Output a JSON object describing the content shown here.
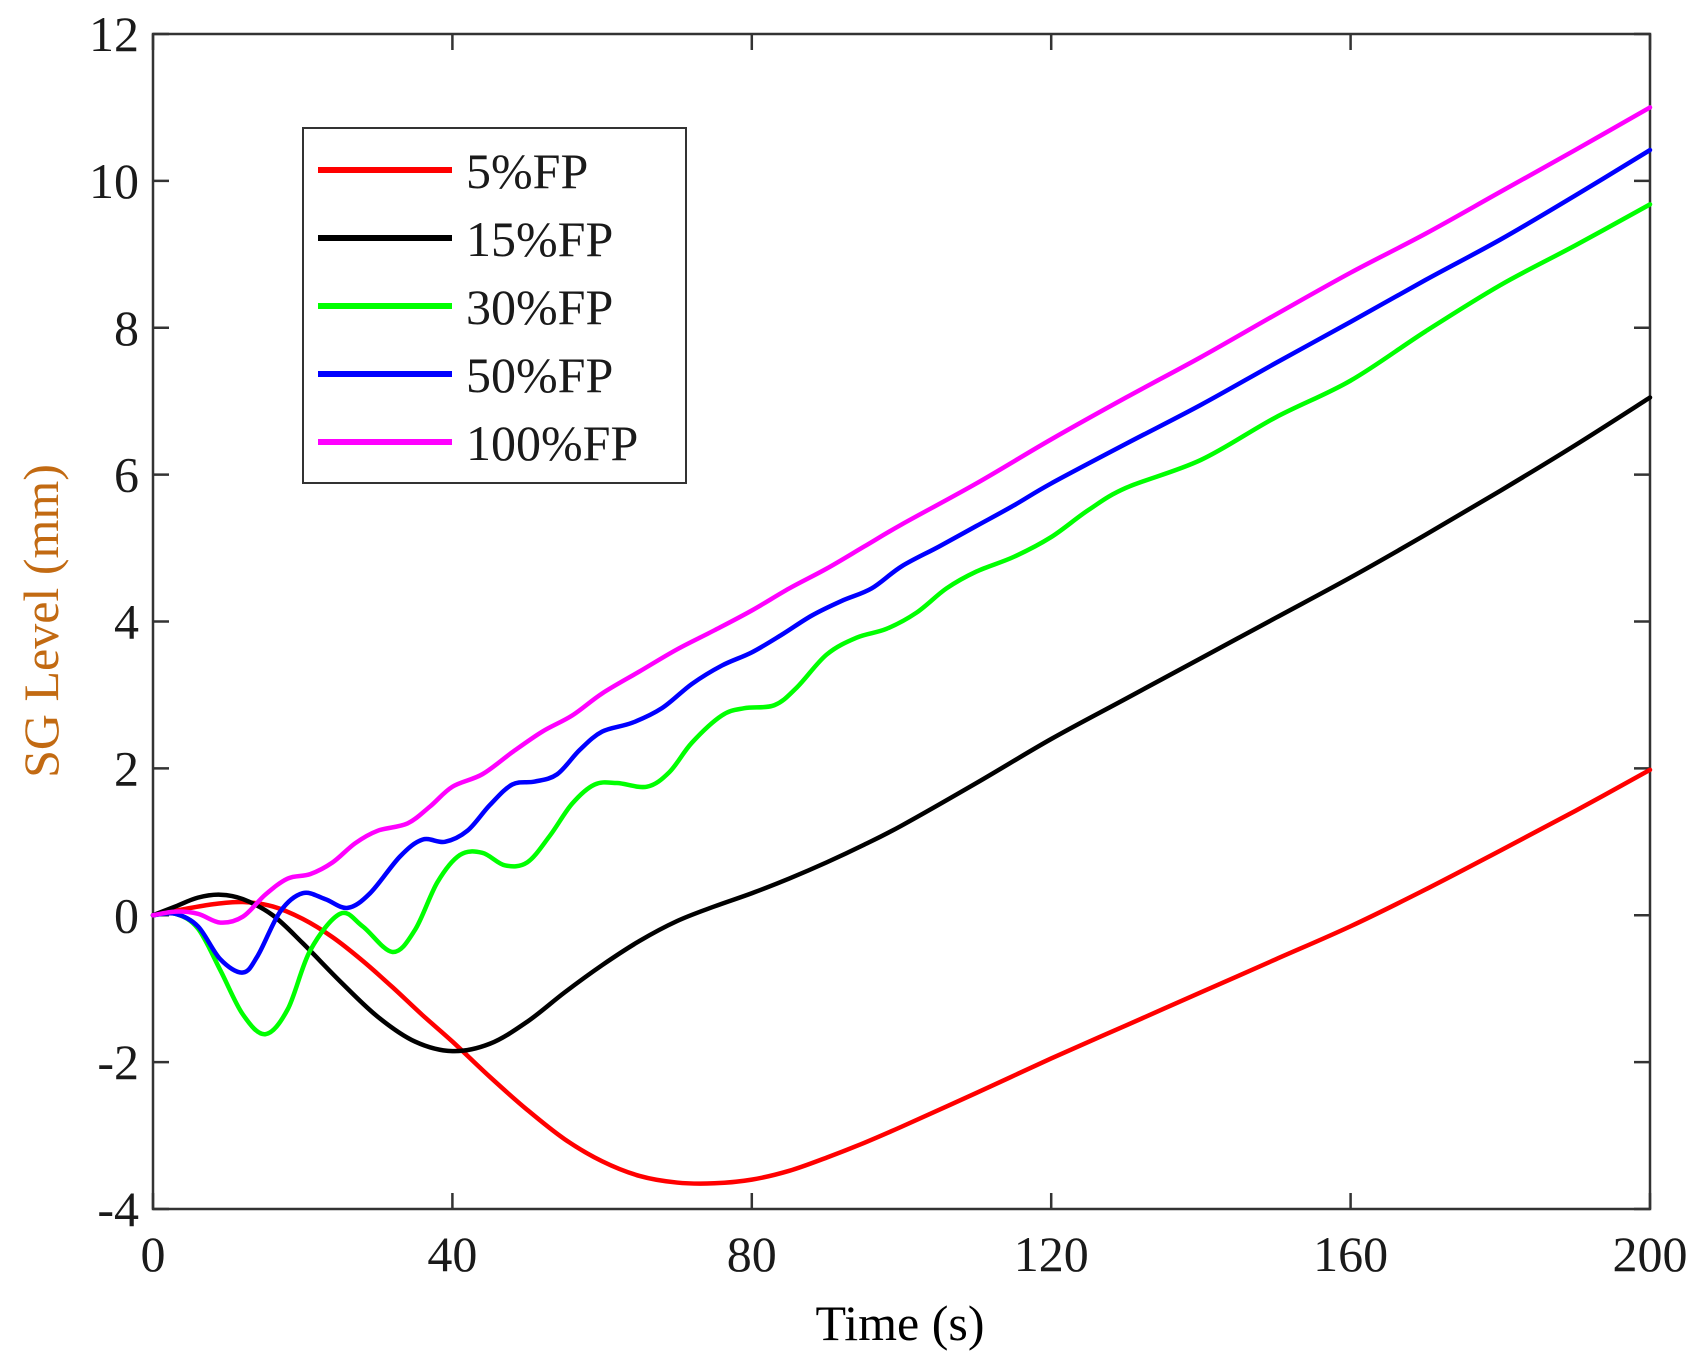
{
  "chart_data": {
    "type": "line",
    "xlabel": "Time (s)",
    "ylabel": "SG Level (mm)",
    "xlim": [
      0,
      200
    ],
    "ylim": [
      -4,
      12
    ],
    "xticks": [
      0,
      40,
      80,
      120,
      160,
      200
    ],
    "yticks": [
      -4,
      -2,
      0,
      2,
      4,
      6,
      8,
      10,
      12
    ],
    "xtick_labels": [
      "0",
      "40",
      "80",
      "120",
      "160",
      "200"
    ],
    "ytick_labels": [
      "-4",
      "-2",
      "0",
      "2",
      "4",
      "6",
      "8",
      "10",
      "12"
    ],
    "grid": false,
    "legend_position": "upper-left",
    "axis_label_colors": {
      "x": "#000000",
      "y": "#C26A12"
    },
    "series": [
      {
        "name": "5%FP",
        "color": "#FF0000",
        "x": [
          0,
          4,
          8,
          12,
          16,
          20,
          24,
          28,
          32,
          36,
          40,
          45,
          50,
          55,
          60,
          65,
          70,
          75,
          80,
          85,
          90,
          95,
          100,
          110,
          120,
          130,
          140,
          150,
          160,
          170,
          180,
          190,
          200
        ],
        "values": [
          0,
          0.08,
          0.15,
          0.18,
          0.12,
          -0.05,
          -0.3,
          -0.62,
          -0.98,
          -1.36,
          -1.72,
          -2.2,
          -2.65,
          -3.05,
          -3.35,
          -3.55,
          -3.64,
          -3.65,
          -3.6,
          -3.48,
          -3.3,
          -3.1,
          -2.88,
          -2.42,
          -1.95,
          -1.5,
          -1.05,
          -0.6,
          -0.15,
          0.35,
          0.88,
          1.42,
          1.98
        ]
      },
      {
        "name": "15%FP",
        "color": "#000000",
        "x": [
          0,
          3,
          6,
          9,
          12,
          16,
          20,
          25,
          30,
          35,
          40,
          45,
          50,
          55,
          60,
          65,
          70,
          75,
          80,
          85,
          90,
          95,
          100,
          110,
          120,
          130,
          140,
          150,
          160,
          170,
          180,
          190,
          200
        ],
        "values": [
          0,
          0.12,
          0.24,
          0.28,
          0.22,
          0.0,
          -0.38,
          -0.9,
          -1.38,
          -1.72,
          -1.85,
          -1.75,
          -1.45,
          -1.05,
          -0.68,
          -0.35,
          -0.08,
          0.12,
          0.3,
          0.5,
          0.72,
          0.96,
          1.22,
          1.8,
          2.4,
          2.95,
          3.5,
          4.05,
          4.6,
          5.18,
          5.78,
          6.4,
          7.05
        ]
      },
      {
        "name": "30%FP",
        "color": "#00FF00",
        "x": [
          0,
          3,
          6,
          9,
          12,
          15,
          18,
          21,
          25,
          28,
          32,
          35,
          38,
          41,
          44,
          47,
          50,
          53,
          56,
          59,
          62,
          66,
          69,
          72,
          76,
          79,
          83,
          86,
          90,
          94,
          98,
          102,
          106,
          110,
          115,
          120,
          125,
          130,
          140,
          150,
          160,
          170,
          180,
          190,
          200
        ],
        "values": [
          0,
          0.02,
          -0.18,
          -0.75,
          -1.35,
          -1.62,
          -1.28,
          -0.48,
          0.02,
          -0.15,
          -0.5,
          -0.2,
          0.45,
          0.82,
          0.85,
          0.68,
          0.72,
          1.08,
          1.52,
          1.78,
          1.8,
          1.75,
          1.95,
          2.35,
          2.72,
          2.82,
          2.86,
          3.1,
          3.55,
          3.78,
          3.9,
          4.12,
          4.45,
          4.68,
          4.88,
          5.15,
          5.52,
          5.82,
          6.2,
          6.78,
          7.28,
          7.95,
          8.58,
          9.12,
          9.68
        ]
      },
      {
        "name": "50%FP",
        "color": "#0000FF",
        "x": [
          0,
          3,
          6,
          9,
          12,
          14,
          17,
          20,
          23,
          26,
          29,
          33,
          36,
          39,
          42,
          45,
          48,
          51,
          54,
          57,
          60,
          64,
          68,
          72,
          76,
          80,
          84,
          88,
          92,
          96,
          100,
          105,
          110,
          115,
          120,
          130,
          140,
          150,
          160,
          170,
          180,
          190,
          200
        ],
        "values": [
          0,
          0.02,
          -0.15,
          -0.6,
          -0.78,
          -0.55,
          0.05,
          0.3,
          0.22,
          0.1,
          0.3,
          0.8,
          1.03,
          1.0,
          1.15,
          1.5,
          1.78,
          1.82,
          1.92,
          2.25,
          2.5,
          2.62,
          2.82,
          3.15,
          3.4,
          3.58,
          3.82,
          4.08,
          4.28,
          4.45,
          4.75,
          5.02,
          5.3,
          5.58,
          5.88,
          6.42,
          6.95,
          7.52,
          8.08,
          8.65,
          9.2,
          9.8,
          10.42
        ]
      },
      {
        "name": "100%FP",
        "color": "#FF00FF",
        "x": [
          0,
          3,
          6,
          9,
          12,
          15,
          18,
          21,
          24,
          27,
          30,
          34,
          37,
          40,
          44,
          48,
          52,
          56,
          60,
          65,
          70,
          75,
          80,
          85,
          90,
          95,
          100,
          110,
          120,
          130,
          140,
          150,
          160,
          170,
          180,
          190,
          200
        ],
        "values": [
          0,
          0.05,
          0.02,
          -0.1,
          -0.02,
          0.28,
          0.5,
          0.56,
          0.72,
          0.98,
          1.15,
          1.25,
          1.48,
          1.75,
          1.92,
          2.22,
          2.5,
          2.72,
          3.02,
          3.32,
          3.62,
          3.88,
          4.15,
          4.45,
          4.72,
          5.02,
          5.32,
          5.88,
          6.48,
          7.05,
          7.6,
          8.18,
          8.75,
          9.28,
          9.85,
          10.42,
          11.0
        ]
      }
    ]
  }
}
